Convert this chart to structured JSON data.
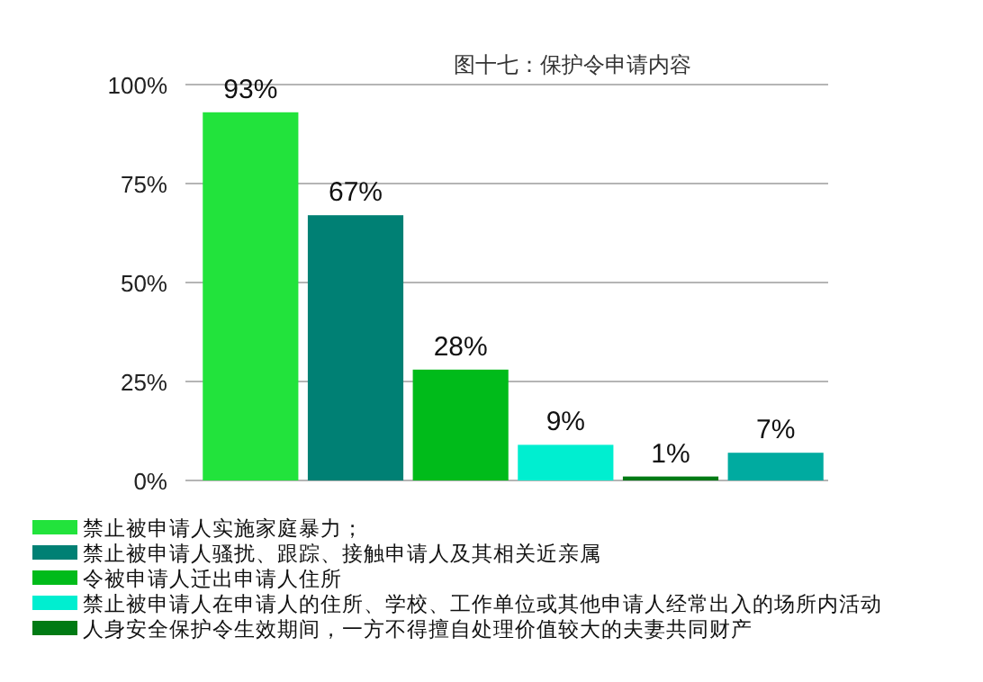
{
  "chart_data": {
    "type": "bar",
    "title": "图十七：保护令申请内容",
    "categories": [
      null,
      null,
      null,
      null,
      null,
      null
    ],
    "series": [
      {
        "name": "禁止被申请人实施家庭暴力；",
        "color": "#22e33c",
        "values": [
          93,
          null,
          null,
          null,
          null,
          null
        ],
        "value_labels": [
          "93%",
          null,
          null,
          null,
          null,
          null
        ]
      },
      {
        "name": "禁止被申请人骚扰、跟踪、接触申请人及其相关近亲属",
        "color": "#008074",
        "values": [
          null,
          67,
          null,
          null,
          null,
          null
        ],
        "value_labels": [
          null,
          "67%",
          null,
          null,
          null,
          null
        ]
      },
      {
        "name": "令被申请人迁出申请人住所",
        "color": "#00bb1a",
        "values": [
          null,
          null,
          28,
          null,
          null,
          null
        ],
        "value_labels": [
          null,
          null,
          "28%",
          null,
          null,
          null
        ]
      },
      {
        "name": "禁止被申请人在申请人的住所、学校、工作单位或其他申请人经常出入的场所内活动",
        "color": "#00eed0",
        "values": [
          null,
          null,
          null,
          9,
          null,
          null
        ],
        "value_labels": [
          null,
          null,
          null,
          "9%",
          null,
          null
        ]
      },
      {
        "name": "人身安全保护令生效期间，一方不得擅自处理价值较大的夫妻共同财产",
        "color": "#007a14",
        "values": [
          null,
          null,
          null,
          null,
          1,
          null
        ],
        "value_labels": [
          null,
          null,
          null,
          null,
          "1%",
          null
        ]
      },
      {
        "color": "#00aba0",
        "values": [
          null,
          null,
          null,
          null,
          null,
          7
        ],
        "value_labels": [
          null,
          null,
          null,
          null,
          null,
          "7%"
        ]
      }
    ],
    "ylim": [
      0,
      100
    ],
    "yticks": [
      {
        "value": 0,
        "label": "0%"
      },
      {
        "value": 25,
        "label": "25%"
      },
      {
        "value": 50,
        "label": "50%"
      },
      {
        "value": 75,
        "label": "75%"
      },
      {
        "value": 100,
        "label": "100%"
      }
    ],
    "grid": "y",
    "legend": "bottom"
  }
}
